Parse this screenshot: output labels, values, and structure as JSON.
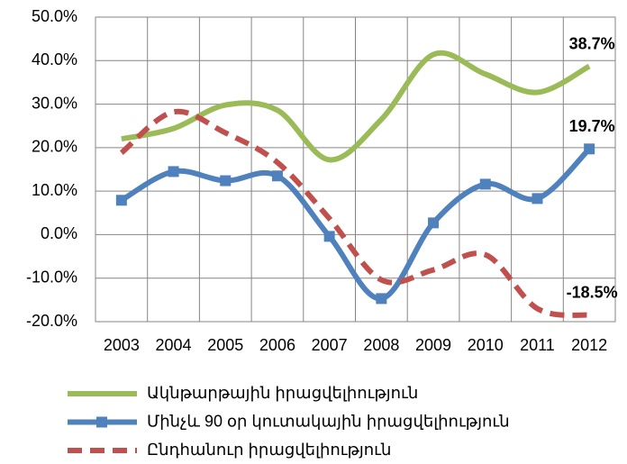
{
  "chart_data": {
    "type": "line",
    "categories": [
      "2003",
      "2004",
      "2005",
      "2006",
      "2007",
      "2008",
      "2009",
      "2010",
      "2011",
      "2012"
    ],
    "series": [
      {
        "name": "Ակնթարթային իրացվելիություն",
        "color": "#9bbb59",
        "dash": false,
        "marker": false,
        "values": [
          22,
          24.4,
          29.8,
          28.6,
          17.2,
          26.5,
          41.4,
          36.9,
          32.7,
          38.7
        ],
        "value_labels": [
          null,
          null,
          null,
          null,
          null,
          null,
          null,
          null,
          null,
          "38.7%"
        ]
      },
      {
        "name": "Մինչև 90 օր կուտակային իրացվելիություն",
        "color": "#4f81bd",
        "dash": false,
        "marker": true,
        "values": [
          7.9,
          14.5,
          12.4,
          13.5,
          -0.4,
          -14.7,
          2.7,
          11.6,
          8.3,
          19.7
        ],
        "value_labels": [
          null,
          null,
          null,
          null,
          null,
          null,
          null,
          null,
          null,
          "19.7%"
        ]
      },
      {
        "name": "Ընդհանուր իրացվելիություն",
        "color": "#c0504d",
        "dash": true,
        "marker": false,
        "values": [
          18.8,
          28.2,
          23.4,
          16.6,
          3.7,
          -10.4,
          -8.1,
          -4.6,
          -17,
          -18.5
        ],
        "value_labels": [
          null,
          null,
          null,
          null,
          null,
          null,
          null,
          null,
          null,
          "-18.5%"
        ]
      }
    ],
    "ylim": [
      -20,
      50
    ],
    "yticks": [
      {
        "value": -20,
        "label": "-20.0%"
      },
      {
        "value": -10,
        "label": "-10.0%"
      },
      {
        "value": 0,
        "label": "0.0%"
      },
      {
        "value": 10,
        "label": "10.0%"
      },
      {
        "value": 20,
        "label": "20.0%"
      },
      {
        "value": 30,
        "label": "30.0%"
      },
      {
        "value": 40,
        "label": "40.0%"
      },
      {
        "value": 50,
        "label": "50.0%"
      }
    ],
    "grid": true,
    "legend": "bottom"
  }
}
